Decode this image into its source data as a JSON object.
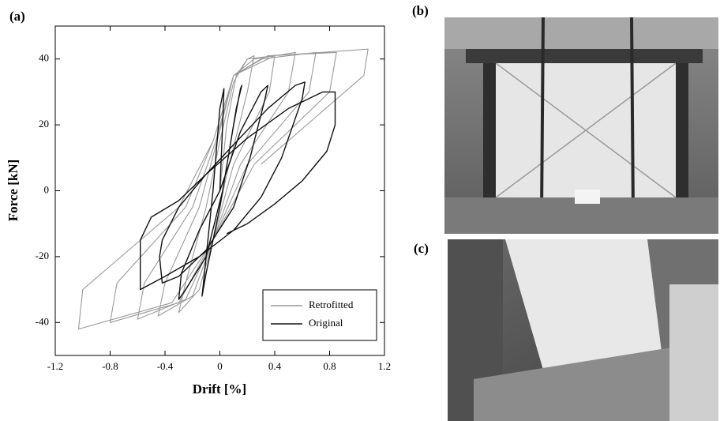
{
  "panel_labels": {
    "b": "(b)",
    "c": "(c)"
  },
  "chart_data": {
    "type": "line",
    "panel_label": "(a)",
    "x_label": "Drift [%]",
    "y_label": "Force [kN]",
    "xlim": [
      -1.2,
      1.2
    ],
    "xticks": [
      -1.2,
      -0.8,
      -0.4,
      0,
      0.4,
      0.8,
      1.2
    ],
    "ylim": [
      -50,
      50
    ],
    "yticks": [
      -40,
      -20,
      0,
      20,
      40
    ],
    "legend": "lower right",
    "series": [
      {
        "name": "Retrofitted",
        "color": "#9a9a9a",
        "x": [
          0,
          0.05,
          0.12,
          0.2,
          0.25,
          0.2,
          0.05,
          -0.05,
          -0.15,
          -0.3,
          -0.25,
          -0.1,
          0.0,
          0.1,
          0.2,
          0.4,
          0.36,
          0.1,
          -0.05,
          -0.2,
          -0.45,
          -0.4,
          -0.15,
          -0.02,
          0.1,
          0.25,
          0.55,
          0.5,
          0.15,
          -0.05,
          -0.25,
          -0.6,
          -0.55,
          -0.2,
          -0.03,
          0.1,
          0.3,
          0.7,
          0.65,
          0.2,
          -0.05,
          -0.3,
          -0.8,
          -0.75,
          -0.25,
          -0.05,
          0.1,
          0.35,
          0.85,
          0.8,
          0.25,
          -0.05,
          -0.35,
          -1.03,
          -1.0,
          -0.3,
          -0.05,
          0.1,
          0.4,
          1.08,
          1.05,
          0.3
        ],
        "values": [
          0,
          20,
          35,
          40,
          41,
          30,
          5,
          -15,
          -30,
          -37,
          -28,
          -5,
          15,
          33,
          40,
          41,
          30,
          8,
          -15,
          -32,
          -38,
          -28,
          -5,
          15,
          35,
          40,
          42,
          30,
          8,
          -15,
          -33,
          -39,
          -28,
          -5,
          15,
          35,
          40,
          42,
          30,
          8,
          -15,
          -34,
          -40,
          -28,
          -5,
          15,
          35,
          41,
          42,
          30,
          8,
          -15,
          -34,
          -42,
          -30,
          -5,
          15,
          35,
          41,
          43,
          35,
          8
        ]
      },
      {
        "name": "Original",
        "color": "#111111",
        "x": [
          0,
          0.02,
          0.03,
          0.0,
          -0.05,
          -0.12,
          -0.13,
          -0.1,
          0,
          0.1,
          0.15,
          0.16,
          0.12,
          0.02,
          -0.1,
          -0.25,
          -0.3,
          -0.28,
          -0.15,
          0,
          0.15,
          0.3,
          0.35,
          0.33,
          0.22,
          0.1,
          -0.1,
          -0.3,
          -0.42,
          -0.44,
          -0.42,
          -0.3,
          -0.1,
          0.1,
          0.35,
          0.55,
          0.62,
          0.6,
          0.45,
          0.3,
          0.1,
          -0.15,
          -0.4,
          -0.58,
          -0.58,
          -0.5,
          -0.3,
          -0.1,
          0.2,
          0.5,
          0.75,
          0.84,
          0.84,
          0.78,
          0.6,
          0.4,
          0.2,
          0.05
        ],
        "values": [
          0,
          20,
          31,
          25,
          0,
          -28,
          -32,
          -25,
          -5,
          20,
          31,
          32,
          25,
          0,
          -20,
          -30,
          -33,
          -25,
          -12,
          0,
          18,
          30,
          32,
          28,
          10,
          -5,
          -18,
          -26,
          -28,
          -20,
          -15,
          -5,
          5,
          14,
          25,
          32,
          33,
          28,
          10,
          -2,
          -12,
          -20,
          -26,
          -30,
          -15,
          -8,
          -3,
          5,
          16,
          25,
          30,
          30,
          20,
          12,
          3,
          -4,
          -10,
          -13
        ]
      }
    ]
  }
}
